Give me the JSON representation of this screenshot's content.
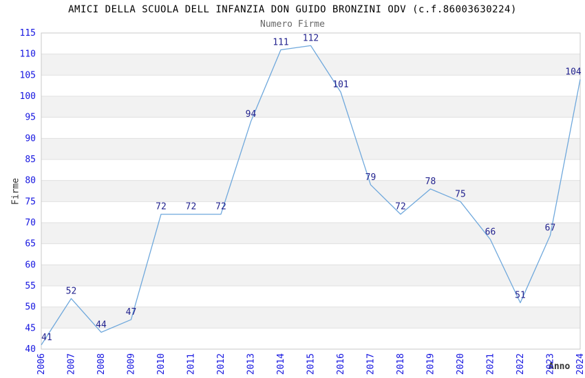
{
  "header": {
    "title": "AMICI DELLA SCUOLA DELL INFANZIA DON GUIDO BRONZINI ODV (c.f.86003630224)",
    "subtitle": "Numero Firme"
  },
  "chart_data": {
    "type": "line",
    "title": "AMICI DELLA SCUOLA DELL INFANZIA DON GUIDO BRONZINI ODV (c.f.86003630224)",
    "subtitle": "Numero Firme",
    "xlabel": "Anno",
    "ylabel": "Firme",
    "categories": [
      "2006",
      "2007",
      "2008",
      "2009",
      "2010",
      "2011",
      "2012",
      "2013",
      "2014",
      "2015",
      "2016",
      "2017",
      "2018",
      "2019",
      "2020",
      "2021",
      "2022",
      "2023",
      "2024"
    ],
    "series": [
      {
        "name": "Numero Firme",
        "values": [
          41,
          52,
          44,
          47,
          72,
          72,
          72,
          94,
          111,
          112,
          101,
          79,
          72,
          78,
          75,
          66,
          51,
          67,
          104
        ]
      }
    ],
    "ylim": [
      40,
      115
    ],
    "ytick_step": 5,
    "grid": true,
    "legend_position": "none",
    "data_labels": true,
    "band_fill": "alternating-horizontal",
    "colors": {
      "line": "#6fa8dc",
      "data_label": "#22228e",
      "tick_label": "#1414e0",
      "band_gray": "#f2f2f2",
      "band_white": "#ffffff",
      "grid_line": "#e0e0e0",
      "plot_border": "#c8c8c8",
      "title": "#000000",
      "subtitle": "#666666",
      "axis_title": "#333333"
    }
  }
}
